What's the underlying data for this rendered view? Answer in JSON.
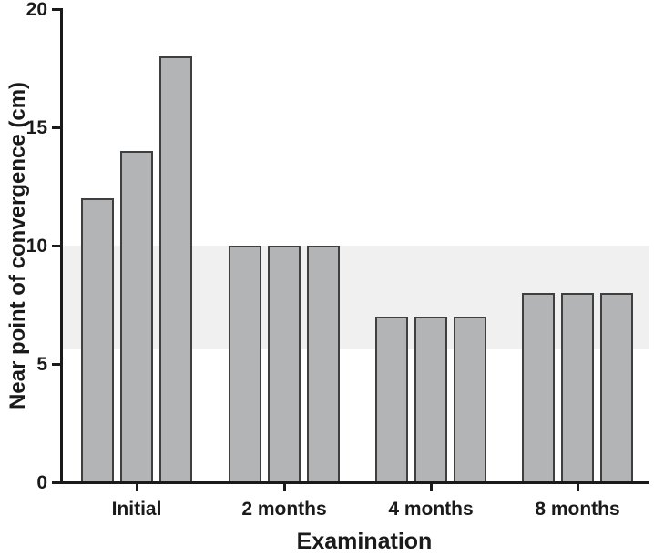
{
  "chart_data": {
    "type": "bar",
    "title": "",
    "xlabel": "Examination",
    "ylabel": "Near point of convergence (cm)",
    "categories": [
      "Initial",
      "2 months",
      "4 months",
      "8 months"
    ],
    "values": [
      [
        12,
        14,
        18
      ],
      [
        10,
        10,
        10
      ],
      [
        7,
        7,
        7
      ],
      [
        8,
        8,
        8
      ]
    ],
    "ylim": [
      0,
      20
    ],
    "yticks": [
      0,
      5,
      10,
      15,
      20
    ],
    "grid": false,
    "legend": false,
    "reference_band": {
      "from": 5.6,
      "to": 10
    },
    "colors": {
      "bar_fill": "#b3b4b6",
      "bar_border": "#3f3f3f",
      "band_fill": "#f0f0f0",
      "axis": "#1a1a1a",
      "background": "#ffffff"
    }
  }
}
